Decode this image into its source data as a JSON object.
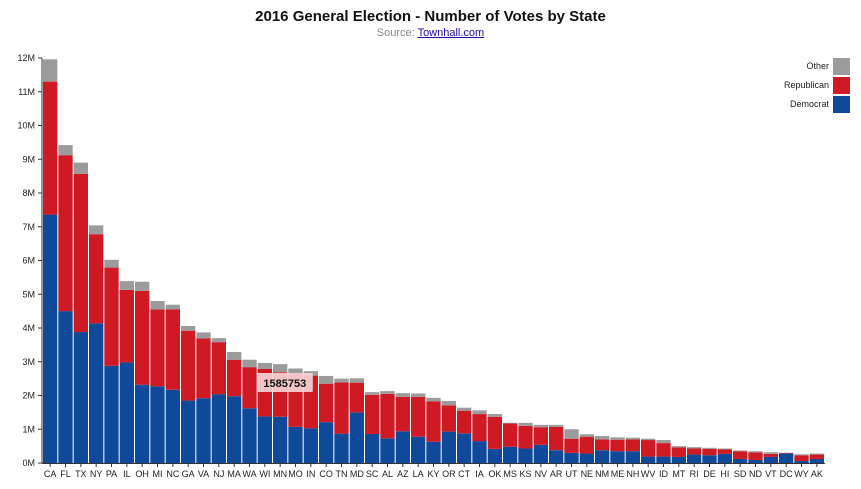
{
  "header": {
    "title": "2016 General Election - Number of Votes by State",
    "source_prefix": "Source: ",
    "source_link": "Townhall.com"
  },
  "tooltip": {
    "value": "1585753",
    "state": "WI"
  },
  "colors": {
    "democrat": "#0f4a9a",
    "republican": "#cf1a24",
    "other": "#9b9b9b"
  },
  "chart_data": {
    "type": "bar",
    "stacked": true,
    "title": "2016 General Election - Number of Votes by State",
    "ylim": [
      0,
      12000000
    ],
    "yticks": [
      0,
      1000000,
      2000000,
      3000000,
      4000000,
      5000000,
      6000000,
      7000000,
      8000000,
      9000000,
      10000000,
      11000000,
      12000000
    ],
    "ytick_labels": [
      "0M",
      "1M",
      "2M",
      "3M",
      "4M",
      "5M",
      "6M",
      "7M",
      "8M",
      "9M",
      "10M",
      "11M",
      "12M"
    ],
    "legend_position": "top-right",
    "categories": [
      "CA",
      "FL",
      "TX",
      "NY",
      "PA",
      "IL",
      "OH",
      "MI",
      "NC",
      "GA",
      "VA",
      "NJ",
      "MA",
      "WA",
      "WI",
      "MN",
      "MO",
      "IN",
      "CO",
      "TN",
      "MD",
      "SC",
      "AL",
      "AZ",
      "LA",
      "KY",
      "OR",
      "CT",
      "IA",
      "OK",
      "MS",
      "KS",
      "NV",
      "AR",
      "UT",
      "NE",
      "NM",
      "ME",
      "NH",
      "WV",
      "ID",
      "MT",
      "RI",
      "DE",
      "HI",
      "SD",
      "ND",
      "VT",
      "DC",
      "WY",
      "AK"
    ],
    "series": [
      {
        "name": "Democrat",
        "values": [
          7360000,
          4500000,
          3880000,
          4140000,
          2880000,
          2980000,
          2320000,
          2270000,
          2170000,
          1850000,
          1920000,
          2040000,
          1980000,
          1620000,
          1380000,
          1370000,
          1070000,
          1030000,
          1210000,
          870000,
          1500000,
          860000,
          730000,
          940000,
          780000,
          630000,
          930000,
          880000,
          650000,
          420000,
          480000,
          430000,
          540000,
          380000,
          300000,
          280000,
          380000,
          350000,
          350000,
          190000,
          190000,
          180000,
          250000,
          230000,
          270000,
          120000,
          90000,
          180000,
          280000,
          60000,
          120000
        ]
      },
      {
        "name": "Republican",
        "values": [
          3940000,
          4620000,
          4690000,
          2640000,
          2910000,
          2150000,
          2780000,
          2280000,
          2380000,
          2070000,
          1770000,
          1540000,
          1080000,
          1220000,
          1405000,
          1320000,
          1590000,
          1560000,
          1140000,
          1520000,
          880000,
          1160000,
          1320000,
          1020000,
          1180000,
          1200000,
          780000,
          670000,
          800000,
          950000,
          690000,
          670000,
          520000,
          690000,
          420000,
          500000,
          320000,
          340000,
          350000,
          490000,
          400000,
          280000,
          180000,
          190000,
          130000,
          230000,
          220000,
          90000,
          15000,
          170000,
          130000
        ]
      },
      {
        "name": "Other",
        "values": [
          660000,
          300000,
          330000,
          260000,
          230000,
          260000,
          270000,
          250000,
          140000,
          140000,
          180000,
          120000,
          230000,
          220000,
          180000,
          240000,
          140000,
          130000,
          230000,
          110000,
          130000,
          80000,
          80000,
          110000,
          100000,
          100000,
          130000,
          90000,
          110000,
          80000,
          20000,
          90000,
          70000,
          60000,
          280000,
          70000,
          100000,
          70000,
          50000,
          40000,
          90000,
          40000,
          40000,
          30000,
          30000,
          20000,
          40000,
          50000,
          10000,
          30000,
          30000
        ]
      }
    ]
  }
}
